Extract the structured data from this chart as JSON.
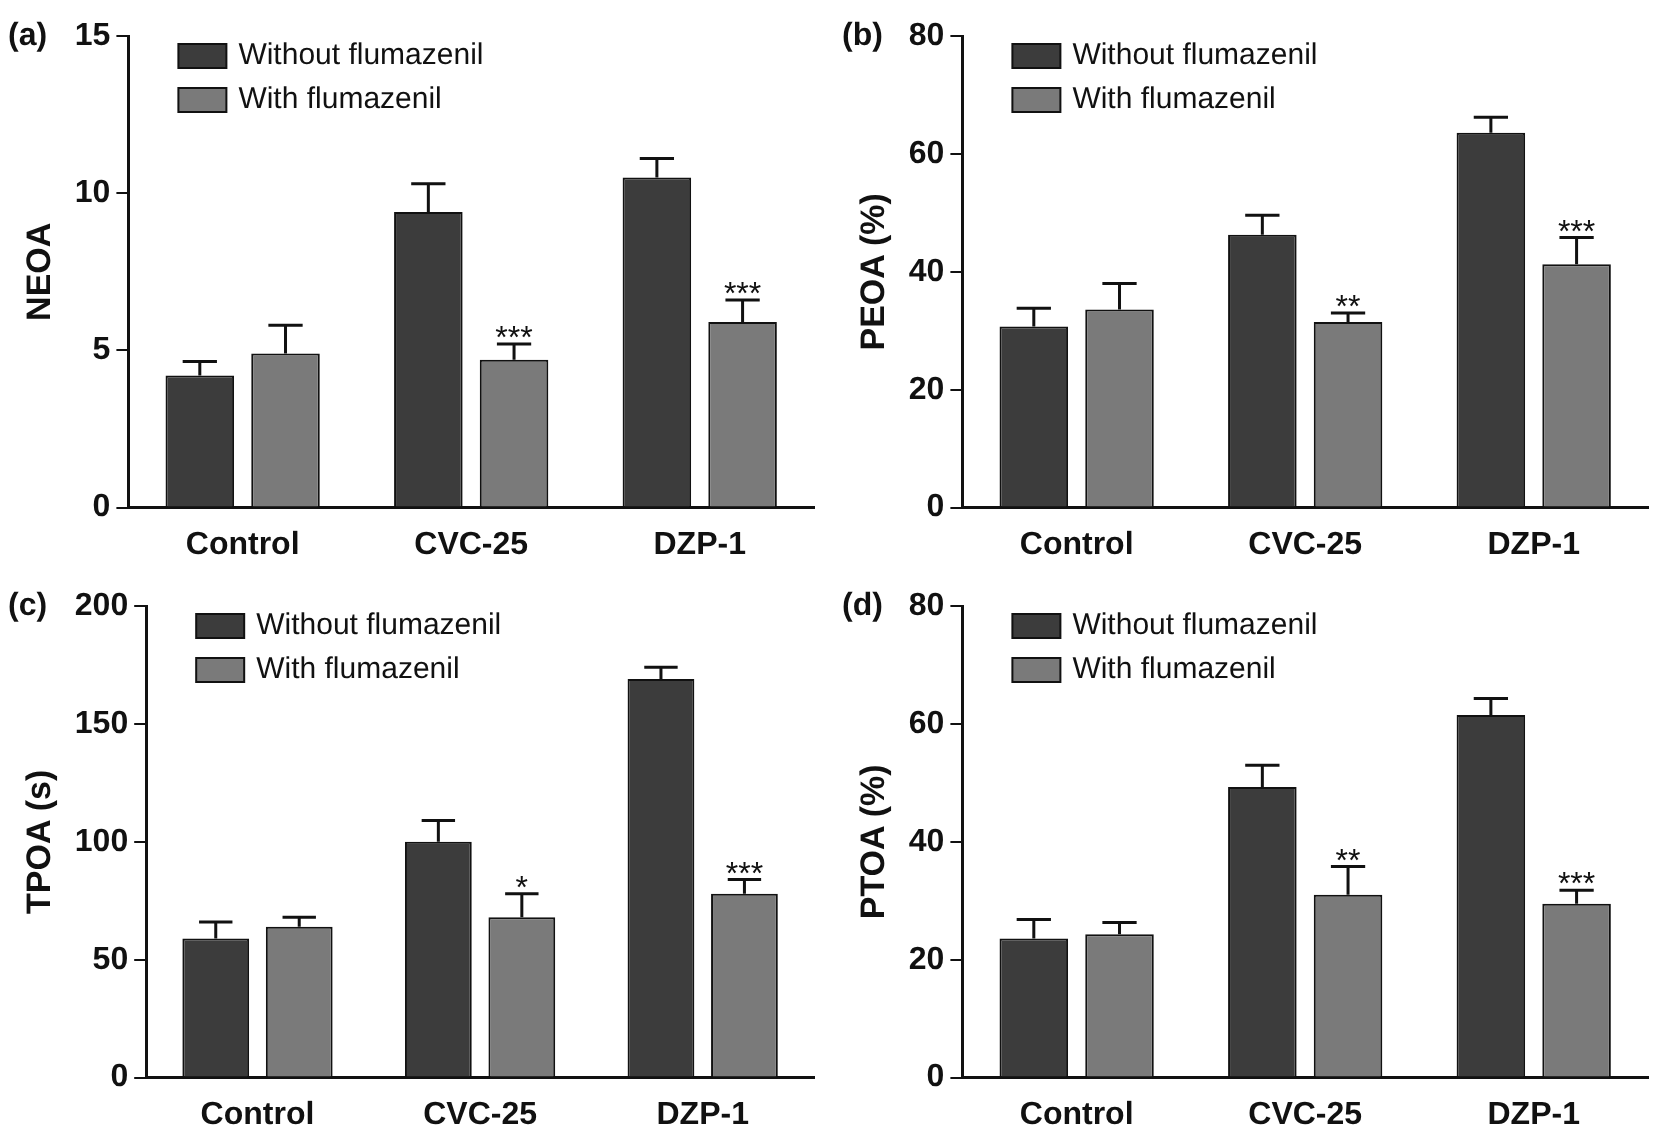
{
  "chart_data": [
    {
      "type": "bar",
      "title": "(a)",
      "ylabel": "NEOA",
      "categories": [
        "Control",
        "CVC-25",
        "DZP-1"
      ],
      "ylim": [
        0,
        15
      ],
      "yticks": [
        0,
        5,
        10,
        15
      ],
      "grid": false,
      "legend": "top left",
      "series": [
        {
          "name": "Without flumazenil",
          "color": "#3c3c3c",
          "values": [
            4.2,
            9.4,
            10.5
          ],
          "errors": [
            [
              4.2,
              4.65
            ],
            [
              9.4,
              10.3
            ],
            [
              10.5,
              11.1
            ]
          ]
        },
        {
          "name": "With flumazenil",
          "color": "#7a7a7a",
          "values": [
            4.9,
            4.7,
            5.9
          ],
          "errors": [
            [
              4.9,
              5.8
            ],
            [
              4.7,
              5.2
            ],
            [
              5.9,
              6.6
            ]
          ],
          "value_labels": [
            null,
            "***",
            "***"
          ]
        }
      ]
    },
    {
      "type": "bar",
      "title": "(b)",
      "ylabel": "PEOA (%)",
      "categories": [
        "Control",
        "CVC-25",
        "DZP-1"
      ],
      "ylim": [
        0,
        80
      ],
      "yticks": [
        0,
        20,
        40,
        60,
        80
      ],
      "grid": false,
      "legend": "top left",
      "series": [
        {
          "name": "Without flumazenil",
          "color": "#3c3c3c",
          "values": [
            30.7,
            46.3,
            63.6
          ],
          "errors": [
            [
              30.7,
              33.8
            ],
            [
              46.3,
              49.6
            ],
            [
              63.6,
              66.2
            ]
          ]
        },
        {
          "name": "With flumazenil",
          "color": "#7a7a7a",
          "values": [
            33.6,
            31.5,
            41.3
          ],
          "errors": [
            [
              33.6,
              38
            ],
            [
              31.5,
              33
            ],
            [
              41.3,
              45.8
            ]
          ],
          "value_labels": [
            null,
            "**",
            "***"
          ]
        }
      ]
    },
    {
      "type": "bar",
      "title": "(c)",
      "ylabel": "TPOA (s)",
      "categories": [
        "Control",
        "CVC-25",
        "DZP-1"
      ],
      "ylim": [
        0,
        200
      ],
      "yticks": [
        0,
        50,
        100,
        150,
        200
      ],
      "grid": false,
      "legend": "top left",
      "series": [
        {
          "name": "Without flumazenil",
          "color": "#3c3c3c",
          "values": [
            59,
            100,
            169
          ],
          "errors": [
            [
              59,
              66
            ],
            [
              100,
              109
            ],
            [
              169,
              174
            ]
          ]
        },
        {
          "name": "With flumazenil",
          "color": "#7a7a7a",
          "values": [
            64,
            68,
            78
          ],
          "errors": [
            [
              64,
              68
            ],
            [
              68,
              78
            ],
            [
              78,
              84
            ]
          ],
          "value_labels": [
            null,
            "*",
            "***"
          ]
        }
      ]
    },
    {
      "type": "bar",
      "title": "(d)",
      "ylabel": "PTOA (%)",
      "categories": [
        "Control",
        "CVC-25",
        "DZP-1"
      ],
      "ylim": [
        0,
        80
      ],
      "yticks": [
        0,
        20,
        40,
        60,
        80
      ],
      "grid": false,
      "legend": "top left",
      "series": [
        {
          "name": "Without flumazenil",
          "color": "#3c3c3c",
          "values": [
            23.6,
            49.3,
            61.5
          ],
          "errors": [
            [
              23.6,
              26.8
            ],
            [
              49.3,
              53
            ],
            [
              61.5,
              64.3
            ]
          ]
        },
        {
          "name": "With flumazenil",
          "color": "#7a7a7a",
          "values": [
            24.3,
            31,
            29.5
          ],
          "errors": [
            [
              24.3,
              26.3
            ],
            [
              31,
              35.8
            ],
            [
              29.5,
              31.8
            ]
          ],
          "value_labels": [
            null,
            "**",
            "***"
          ]
        }
      ]
    }
  ]
}
